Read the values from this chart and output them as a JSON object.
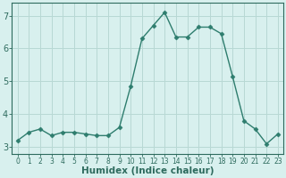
{
  "x": [
    0,
    1,
    2,
    3,
    4,
    5,
    6,
    7,
    8,
    9,
    10,
    11,
    12,
    13,
    14,
    15,
    16,
    17,
    18,
    19,
    20,
    21,
    22,
    23
  ],
  "y": [
    3.2,
    3.45,
    3.55,
    3.35,
    3.45,
    3.45,
    3.4,
    3.35,
    3.35,
    3.6,
    4.85,
    6.3,
    6.7,
    7.1,
    6.35,
    6.35,
    6.65,
    6.65,
    6.45,
    5.15,
    3.8,
    3.55,
    3.1,
    3.4
  ],
  "line_color": "#2e7d6e",
  "marker": "D",
  "marker_size": 2.5,
  "bg_color": "#d8f0ee",
  "grid_color": "#b8d8d4",
  "xlabel": "Humidex (Indice chaleur)",
  "xlim": [
    -0.5,
    23.5
  ],
  "ylim": [
    2.8,
    7.4
  ],
  "yticks": [
    3,
    4,
    5,
    6,
    7
  ],
  "xticks": [
    0,
    1,
    2,
    3,
    4,
    5,
    6,
    7,
    8,
    9,
    10,
    11,
    12,
    13,
    14,
    15,
    16,
    17,
    18,
    19,
    20,
    21,
    22,
    23
  ],
  "tick_color": "#2e6b5e",
  "label_color": "#2e6b5e",
  "xtick_fontsize": 5.5,
  "ytick_fontsize": 7,
  "xlabel_fontsize": 7.5
}
